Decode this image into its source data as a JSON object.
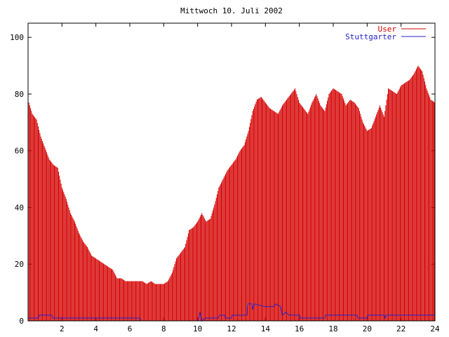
{
  "chart_data": {
    "type": "line",
    "title": "Mittwoch 10. Juli 2002",
    "xlabel": "",
    "ylabel": "",
    "xlim": [
      0,
      24
    ],
    "ylim": [
      0,
      105
    ],
    "x_ticks": [
      2,
      4,
      6,
      8,
      10,
      12,
      14,
      16,
      18,
      20,
      22,
      24
    ],
    "y_ticks": [
      0,
      20,
      40,
      60,
      80,
      100
    ],
    "grid": false,
    "legend": "top-right",
    "series": [
      {
        "name": "User",
        "color": "#d40000",
        "style": "impulses",
        "points": [
          [
            0.0,
            78
          ],
          [
            0.25,
            73
          ],
          [
            0.5,
            71
          ],
          [
            0.75,
            65
          ],
          [
            1.0,
            61
          ],
          [
            1.25,
            57
          ],
          [
            1.5,
            55
          ],
          [
            1.75,
            54
          ],
          [
            2.0,
            47
          ],
          [
            2.25,
            43
          ],
          [
            2.5,
            38
          ],
          [
            2.75,
            35
          ],
          [
            3.0,
            31
          ],
          [
            3.25,
            28
          ],
          [
            3.5,
            26
          ],
          [
            3.75,
            23
          ],
          [
            4.0,
            22
          ],
          [
            4.25,
            21
          ],
          [
            4.5,
            20
          ],
          [
            4.75,
            19
          ],
          [
            5.0,
            18
          ],
          [
            5.25,
            15
          ],
          [
            5.5,
            15
          ],
          [
            5.75,
            14
          ],
          [
            6.0,
            14
          ],
          [
            6.25,
            14
          ],
          [
            6.5,
            14
          ],
          [
            6.75,
            14
          ],
          [
            7.0,
            13
          ],
          [
            7.25,
            14
          ],
          [
            7.5,
            13
          ],
          [
            7.75,
            13
          ],
          [
            8.0,
            13
          ],
          [
            8.25,
            14
          ],
          [
            8.5,
            17
          ],
          [
            8.75,
            22
          ],
          [
            9.0,
            24
          ],
          [
            9.25,
            26
          ],
          [
            9.5,
            32
          ],
          [
            9.75,
            33
          ],
          [
            10.0,
            35
          ],
          [
            10.25,
            38
          ],
          [
            10.5,
            35
          ],
          [
            10.75,
            36
          ],
          [
            11.0,
            41
          ],
          [
            11.25,
            47
          ],
          [
            11.5,
            50
          ],
          [
            11.75,
            53
          ],
          [
            12.0,
            55
          ],
          [
            12.25,
            57
          ],
          [
            12.5,
            60
          ],
          [
            12.75,
            62
          ],
          [
            13.0,
            67
          ],
          [
            13.25,
            74
          ],
          [
            13.5,
            78
          ],
          [
            13.75,
            79
          ],
          [
            14.0,
            77
          ],
          [
            14.25,
            75
          ],
          [
            14.5,
            74
          ],
          [
            14.75,
            73
          ],
          [
            15.0,
            76
          ],
          [
            15.25,
            78
          ],
          [
            15.5,
            80
          ],
          [
            15.75,
            82
          ],
          [
            16.0,
            77
          ],
          [
            16.25,
            75
          ],
          [
            16.5,
            73
          ],
          [
            16.75,
            77
          ],
          [
            17.0,
            80
          ],
          [
            17.25,
            76
          ],
          [
            17.5,
            74
          ],
          [
            17.75,
            80
          ],
          [
            18.0,
            82
          ],
          [
            18.25,
            81
          ],
          [
            18.5,
            80
          ],
          [
            18.75,
            76
          ],
          [
            19.0,
            78
          ],
          [
            19.25,
            77
          ],
          [
            19.5,
            75
          ],
          [
            19.75,
            70
          ],
          [
            20.0,
            67
          ],
          [
            20.25,
            68
          ],
          [
            20.5,
            72
          ],
          [
            20.75,
            76
          ],
          [
            21.0,
            72
          ],
          [
            21.25,
            82
          ],
          [
            21.5,
            81
          ],
          [
            21.75,
            80
          ],
          [
            22.0,
            83
          ],
          [
            22.25,
            84
          ],
          [
            22.5,
            85
          ],
          [
            22.75,
            87
          ],
          [
            23.0,
            90
          ],
          [
            23.25,
            88
          ],
          [
            23.5,
            82
          ],
          [
            23.75,
            78
          ],
          [
            24.0,
            77
          ]
        ]
      },
      {
        "name": "Stuttgarter",
        "color": "#2222cc",
        "style": "lines",
        "points": [
          [
            0.0,
            1
          ],
          [
            0.6,
            1
          ],
          [
            0.65,
            2
          ],
          [
            1.4,
            2
          ],
          [
            1.45,
            1
          ],
          [
            6.6,
            1
          ],
          [
            6.65,
            0
          ],
          [
            10.0,
            0
          ],
          [
            10.15,
            3
          ],
          [
            10.25,
            0
          ],
          [
            10.45,
            1
          ],
          [
            11.2,
            1
          ],
          [
            11.3,
            2
          ],
          [
            11.6,
            2
          ],
          [
            11.65,
            1
          ],
          [
            12.0,
            1
          ],
          [
            12.05,
            2
          ],
          [
            12.9,
            2
          ],
          [
            12.95,
            6
          ],
          [
            13.2,
            6
          ],
          [
            13.25,
            4
          ],
          [
            13.35,
            6
          ],
          [
            14.0,
            5
          ],
          [
            14.5,
            5
          ],
          [
            14.6,
            6
          ],
          [
            14.9,
            5
          ],
          [
            15.0,
            2
          ],
          [
            15.2,
            3
          ],
          [
            15.4,
            2
          ],
          [
            16.0,
            2
          ],
          [
            16.05,
            1
          ],
          [
            17.5,
            1
          ],
          [
            17.55,
            2
          ],
          [
            19.4,
            2
          ],
          [
            19.45,
            1
          ],
          [
            20.0,
            1
          ],
          [
            20.05,
            2
          ],
          [
            21.0,
            2
          ],
          [
            21.05,
            1
          ],
          [
            21.1,
            2
          ],
          [
            24.0,
            2
          ]
        ]
      }
    ]
  }
}
